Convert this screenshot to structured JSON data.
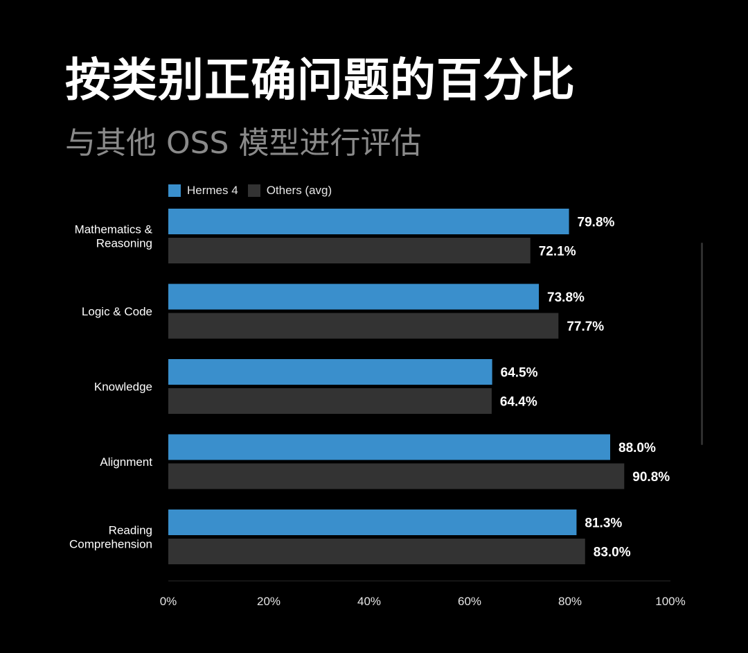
{
  "header": {
    "title": "按类别正确问题的百分比",
    "subtitle": "与其他 OSS 模型进行评估"
  },
  "colors": {
    "background": "#000000",
    "hermes": "#3a8fcc",
    "others": "#333333",
    "text": "#ffffff",
    "subtitle": "#8a8a8a"
  },
  "chart_data": {
    "type": "bar",
    "orientation": "horizontal",
    "categories": [
      "Mathematics & Reasoning",
      "Logic & Code",
      "Knowledge",
      "Alignment",
      "Reading Comprehension"
    ],
    "category_lines": [
      [
        "Mathematics &",
        "Reasoning"
      ],
      [
        "Logic & Code"
      ],
      [
        "Knowledge"
      ],
      [
        "Alignment"
      ],
      [
        "Reading",
        "Comprehension"
      ]
    ],
    "series": [
      {
        "name": "Hermes 4",
        "values": [
          79.8,
          73.8,
          64.5,
          88.0,
          81.3
        ],
        "labels": [
          "79.8%",
          "73.8%",
          "64.5%",
          "88.0%",
          "81.3%"
        ],
        "color": "#3a8fcc"
      },
      {
        "name": "Others (avg)",
        "values": [
          72.1,
          77.7,
          64.4,
          90.8,
          83.0
        ],
        "labels": [
          "72.1%",
          "77.7%",
          "64.4%",
          "90.8%",
          "83.0%"
        ],
        "color": "#333333"
      }
    ],
    "xlim": [
      0,
      100
    ],
    "xticks": [
      0,
      20,
      40,
      60,
      80,
      100
    ],
    "xtick_labels": [
      "0%",
      "20%",
      "40%",
      "60%",
      "80%",
      "100%"
    ],
    "legend_position": "top-left",
    "grid": false
  }
}
